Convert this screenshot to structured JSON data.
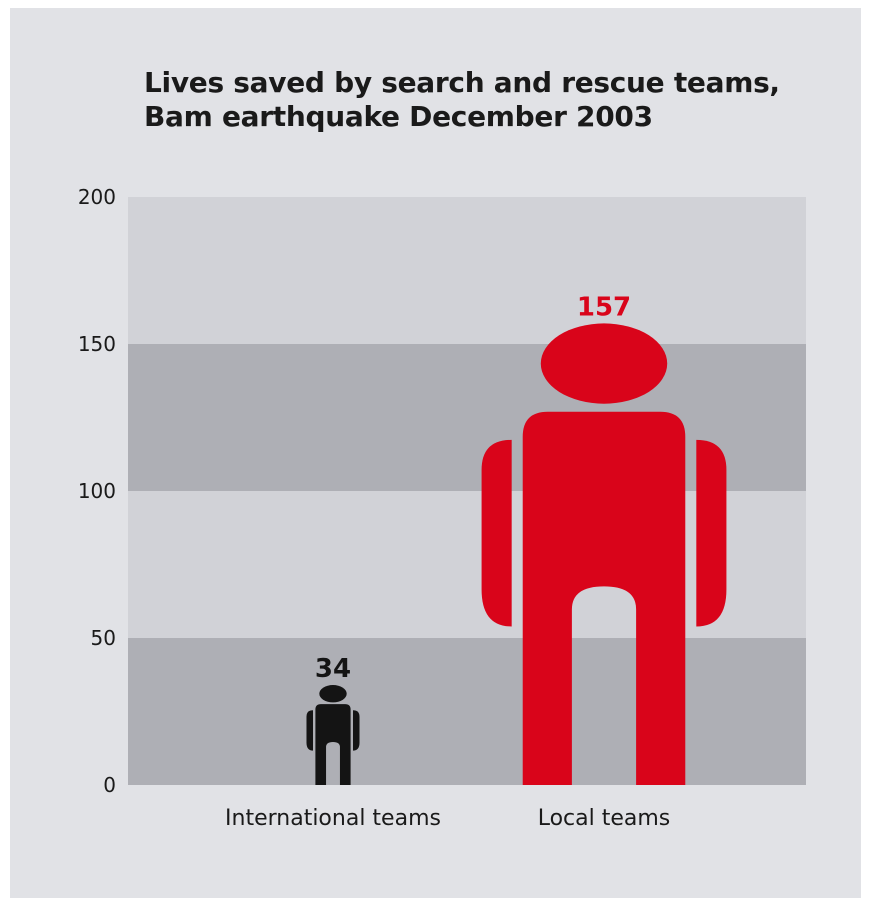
{
  "chart_data": {
    "type": "bar",
    "title_lines": [
      "Lives saved by search and rescue teams,",
      "Bam earthquake December 2003"
    ],
    "categories": [
      "International teams",
      "Local teams"
    ],
    "values": [
      34,
      157
    ],
    "value_labels": [
      "34",
      "157"
    ],
    "ylim": [
      0,
      200
    ],
    "yticks": [
      "0",
      "50",
      "100",
      "150",
      "200"
    ],
    "xlabel": "",
    "ylabel": "",
    "colors": [
      "#141414",
      "#d9041a"
    ],
    "band_colors": [
      "#aeafb5",
      "#d1d2d7"
    ],
    "grid": false,
    "legend": "none"
  }
}
